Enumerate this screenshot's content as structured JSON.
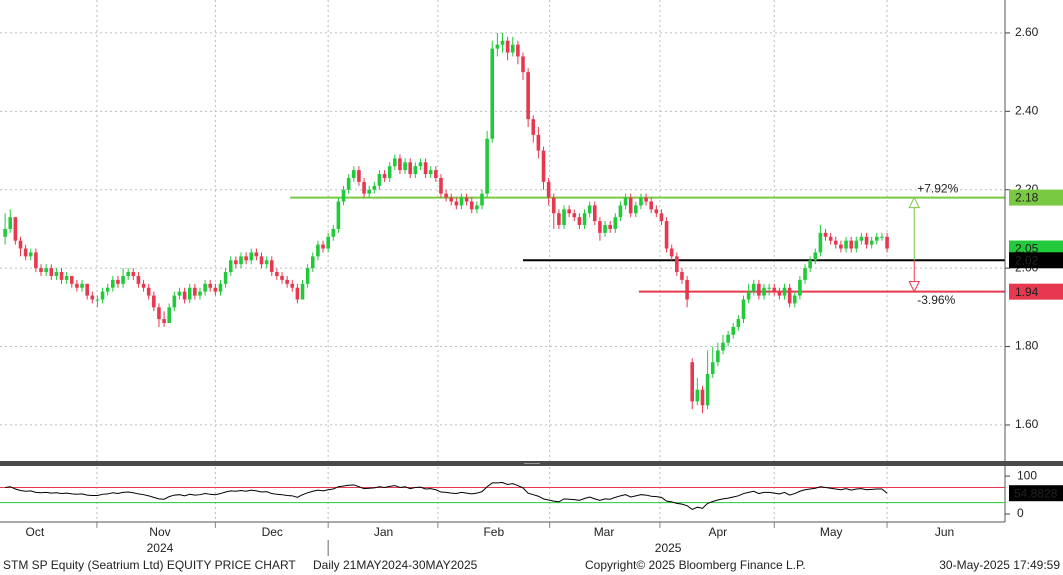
{
  "chart_data": {
    "type": "candlestick",
    "title": "STM SP Equity (Seatrium Ltd) EQUITY PRICE CHART",
    "subtitle": "Daily 21MAY2024-30MAY2025",
    "copyright": "Copyright© 2025 Bloomberg Finance L.P.",
    "timestamp": "30-May-2025 17:49:59",
    "up_color": "#22c93a",
    "down_color": "#e8384f",
    "grid": true,
    "xlim": [
      -1,
      195
    ],
    "xticks": [
      17.9,
      41,
      63,
      84.4,
      106.2,
      127.7,
      150,
      172
    ],
    "month_labels": [
      {
        "value": 5.8,
        "label": "Oct"
      },
      {
        "value": 30.2,
        "label": "Nov"
      },
      {
        "value": 52.1,
        "label": "Dec"
      },
      {
        "value": 73.8,
        "label": "Jan"
      },
      {
        "value": 95.3,
        "label": "Feb"
      },
      {
        "value": 116.8,
        "label": "Mar"
      },
      {
        "value": 139,
        "label": "Apr"
      },
      {
        "value": 161.1,
        "label": "May"
      },
      {
        "value": 183.2,
        "label": "Jun"
      }
    ],
    "year_labels": [
      {
        "value": 30.2,
        "label": "2024"
      },
      {
        "value": 129.3,
        "label": "2025"
      }
    ],
    "year_divider": 63,
    "ylim": [
      1.508,
      2.684
    ],
    "yticks": [
      {
        "value": 1.6,
        "label": "1.60"
      },
      {
        "value": 1.8,
        "label": "1.80"
      },
      {
        "value": 2.0,
        "label": "2.00"
      },
      {
        "value": 2.2,
        "label": "2.20"
      },
      {
        "value": 2.4,
        "label": "2.40"
      },
      {
        "value": 2.6,
        "label": "2.60"
      }
    ],
    "levels": [
      {
        "value": 2.18,
        "from": 55.6,
        "color": "#7ac943"
      },
      {
        "value": 2.02,
        "from": 101,
        "color": "#000000"
      },
      {
        "value": 1.94,
        "from": 123.6,
        "color": "#e8384f"
      }
    ],
    "annotations": [
      {
        "text": "+7.92%",
        "x": 177.3,
        "from": 2.02,
        "to": 2.18,
        "color": "#7ac943"
      },
      {
        "text": "-3.96%",
        "x": 177.3,
        "from": 2.02,
        "to": 1.94,
        "color": "#e8384f"
      }
    ],
    "candles": [
      [
        2.08,
        2.14,
        2.06,
        2.1
      ],
      [
        2.1,
        2.15,
        2.09,
        2.13
      ],
      [
        2.13,
        2.13,
        2.06,
        2.07
      ],
      [
        2.07,
        2.08,
        2.03,
        2.05
      ],
      [
        2.05,
        2.06,
        2.02,
        2.03
      ],
      [
        2.03,
        2.05,
        2.02,
        2.04
      ],
      [
        2.04,
        2.05,
        1.99,
        2.0
      ],
      [
        2.0,
        2.01,
        1.98,
        1.99
      ],
      [
        1.99,
        2.01,
        1.98,
        2.0
      ],
      [
        2.0,
        2.01,
        1.97,
        1.98
      ],
      [
        1.98,
        2.0,
        1.97,
        1.99
      ],
      [
        1.99,
        2.0,
        1.96,
        1.97
      ],
      [
        1.97,
        1.99,
        1.96,
        1.98
      ],
      [
        1.98,
        1.98,
        1.95,
        1.96
      ],
      [
        1.96,
        1.97,
        1.94,
        1.95
      ],
      [
        1.95,
        1.97,
        1.94,
        1.96
      ],
      [
        1.96,
        1.96,
        1.92,
        1.93
      ],
      [
        1.93,
        1.94,
        1.91,
        1.92
      ],
      [
        1.92,
        1.93,
        1.9,
        1.92
      ],
      [
        1.92,
        1.95,
        1.91,
        1.94
      ],
      [
        1.94,
        1.96,
        1.93,
        1.95
      ],
      [
        1.95,
        1.98,
        1.94,
        1.97
      ],
      [
        1.97,
        1.98,
        1.95,
        1.96
      ],
      [
        1.96,
        2.0,
        1.95,
        1.98
      ],
      [
        1.98,
        2.0,
        1.97,
        1.99
      ],
      [
        1.99,
        2.0,
        1.97,
        1.98
      ],
      [
        1.98,
        1.99,
        1.95,
        1.96
      ],
      [
        1.96,
        1.97,
        1.94,
        1.95
      ],
      [
        1.95,
        1.96,
        1.92,
        1.93
      ],
      [
        1.93,
        1.94,
        1.89,
        1.9
      ],
      [
        1.9,
        1.91,
        1.85,
        1.87
      ],
      [
        1.87,
        1.89,
        1.85,
        1.86
      ],
      [
        1.86,
        1.91,
        1.86,
        1.9
      ],
      [
        1.9,
        1.94,
        1.89,
        1.93
      ],
      [
        1.93,
        1.95,
        1.92,
        1.94
      ],
      [
        1.94,
        1.95,
        1.91,
        1.92
      ],
      [
        1.92,
        1.96,
        1.91,
        1.95
      ],
      [
        1.95,
        1.96,
        1.92,
        1.93
      ],
      [
        1.93,
        1.95,
        1.92,
        1.94
      ],
      [
        1.94,
        1.97,
        1.93,
        1.96
      ],
      [
        1.96,
        1.97,
        1.94,
        1.95
      ],
      [
        1.95,
        1.96,
        1.93,
        1.94
      ],
      [
        1.94,
        1.97,
        1.93,
        1.96
      ],
      [
        1.96,
        2.0,
        1.95,
        1.99
      ],
      [
        1.99,
        2.03,
        1.98,
        2.02
      ],
      [
        2.02,
        2.03,
        2.0,
        2.01
      ],
      [
        2.01,
        2.04,
        2.0,
        2.03
      ],
      [
        2.03,
        2.04,
        2.01,
        2.02
      ],
      [
        2.02,
        2.05,
        2.01,
        2.04
      ],
      [
        2.04,
        2.05,
        2.02,
        2.03
      ],
      [
        2.03,
        2.04,
        2.0,
        2.01
      ],
      [
        2.01,
        2.03,
        2.0,
        2.02
      ],
      [
        2.02,
        2.03,
        1.98,
        1.99
      ],
      [
        1.99,
        2.0,
        1.97,
        1.98
      ],
      [
        1.98,
        1.99,
        1.96,
        1.97
      ],
      [
        1.97,
        1.98,
        1.95,
        1.96
      ],
      [
        1.96,
        1.97,
        1.94,
        1.95
      ],
      [
        1.95,
        1.96,
        1.91,
        1.92
      ],
      [
        1.92,
        1.97,
        1.92,
        1.96
      ],
      [
        1.96,
        2.01,
        1.95,
        2.0
      ],
      [
        2.0,
        2.04,
        1.99,
        2.03
      ],
      [
        2.03,
        2.07,
        2.02,
        2.06
      ],
      [
        2.06,
        2.07,
        2.04,
        2.05
      ],
      [
        2.05,
        2.09,
        2.04,
        2.08
      ],
      [
        2.08,
        2.11,
        2.07,
        2.1
      ],
      [
        2.1,
        2.18,
        2.09,
        2.17
      ],
      [
        2.17,
        2.21,
        2.16,
        2.2
      ],
      [
        2.2,
        2.24,
        2.19,
        2.23
      ],
      [
        2.23,
        2.26,
        2.22,
        2.25
      ],
      [
        2.25,
        2.26,
        2.21,
        2.22
      ],
      [
        2.22,
        2.23,
        2.18,
        2.19
      ],
      [
        2.19,
        2.21,
        2.18,
        2.2
      ],
      [
        2.2,
        2.22,
        2.19,
        2.21
      ],
      [
        2.21,
        2.25,
        2.2,
        2.24
      ],
      [
        2.24,
        2.25,
        2.22,
        2.23
      ],
      [
        2.23,
        2.27,
        2.22,
        2.26
      ],
      [
        2.26,
        2.29,
        2.25,
        2.28
      ],
      [
        2.28,
        2.29,
        2.24,
        2.25
      ],
      [
        2.25,
        2.28,
        2.24,
        2.27
      ],
      [
        2.27,
        2.28,
        2.23,
        2.24
      ],
      [
        2.24,
        2.27,
        2.23,
        2.26
      ],
      [
        2.26,
        2.28,
        2.25,
        2.27
      ],
      [
        2.27,
        2.28,
        2.23,
        2.24
      ],
      [
        2.24,
        2.26,
        2.23,
        2.25
      ],
      [
        2.25,
        2.26,
        2.22,
        2.23
      ],
      [
        2.23,
        2.24,
        2.18,
        2.19
      ],
      [
        2.19,
        2.2,
        2.17,
        2.18
      ],
      [
        2.18,
        2.19,
        2.16,
        2.17
      ],
      [
        2.17,
        2.18,
        2.15,
        2.16
      ],
      [
        2.16,
        2.19,
        2.15,
        2.18
      ],
      [
        2.18,
        2.19,
        2.16,
        2.17
      ],
      [
        2.17,
        2.18,
        2.14,
        2.15
      ],
      [
        2.15,
        2.17,
        2.14,
        2.16
      ],
      [
        2.16,
        2.2,
        2.15,
        2.19
      ],
      [
        2.19,
        2.35,
        2.18,
        2.33
      ],
      [
        2.33,
        2.58,
        2.32,
        2.56
      ],
      [
        2.56,
        2.6,
        2.54,
        2.57
      ],
      [
        2.57,
        2.6,
        2.55,
        2.58
      ],
      [
        2.58,
        2.59,
        2.53,
        2.55
      ],
      [
        2.55,
        2.59,
        2.54,
        2.57
      ],
      [
        2.57,
        2.58,
        2.52,
        2.54
      ],
      [
        2.54,
        2.55,
        2.48,
        2.5
      ],
      [
        2.5,
        2.51,
        2.36,
        2.38
      ],
      [
        2.38,
        2.39,
        2.32,
        2.34
      ],
      [
        2.34,
        2.36,
        2.28,
        2.3
      ],
      [
        2.3,
        2.31,
        2.2,
        2.22
      ],
      [
        2.22,
        2.23,
        2.16,
        2.18
      ],
      [
        2.18,
        2.19,
        2.1,
        2.14
      ],
      [
        2.14,
        2.15,
        2.1,
        2.11
      ],
      [
        2.11,
        2.16,
        2.1,
        2.15
      ],
      [
        2.15,
        2.16,
        2.13,
        2.14
      ],
      [
        2.14,
        2.15,
        2.12,
        2.13
      ],
      [
        2.13,
        2.14,
        2.1,
        2.11
      ],
      [
        2.11,
        2.15,
        2.1,
        2.14
      ],
      [
        2.14,
        2.17,
        2.13,
        2.16
      ],
      [
        2.16,
        2.17,
        2.11,
        2.12
      ],
      [
        2.12,
        2.13,
        2.07,
        2.09
      ],
      [
        2.09,
        2.12,
        2.08,
        2.11
      ],
      [
        2.11,
        2.12,
        2.09,
        2.1
      ],
      [
        2.1,
        2.14,
        2.09,
        2.13
      ],
      [
        2.13,
        2.17,
        2.12,
        2.16
      ],
      [
        2.16,
        2.19,
        2.15,
        2.18
      ],
      [
        2.18,
        2.19,
        2.13,
        2.14
      ],
      [
        2.14,
        2.17,
        2.13,
        2.16
      ],
      [
        2.16,
        2.19,
        2.15,
        2.18
      ],
      [
        2.18,
        2.19,
        2.16,
        2.17
      ],
      [
        2.17,
        2.18,
        2.14,
        2.15
      ],
      [
        2.15,
        2.16,
        2.13,
        2.14
      ],
      [
        2.14,
        2.15,
        2.11,
        2.12
      ],
      [
        2.12,
        2.13,
        2.04,
        2.05
      ],
      [
        2.05,
        2.06,
        2.02,
        2.03
      ],
      [
        2.03,
        2.04,
        1.98,
        1.99
      ],
      [
        1.99,
        2.0,
        1.96,
        1.97
      ],
      [
        1.97,
        1.98,
        1.9,
        1.92
      ],
      [
        1.76,
        1.77,
        1.64,
        1.66
      ],
      [
        1.66,
        1.72,
        1.65,
        1.69
      ],
      [
        1.69,
        1.7,
        1.63,
        1.65
      ],
      [
        1.65,
        1.79,
        1.64,
        1.73
      ],
      [
        1.73,
        1.8,
        1.72,
        1.76
      ],
      [
        1.76,
        1.81,
        1.75,
        1.79
      ],
      [
        1.79,
        1.83,
        1.78,
        1.81
      ],
      [
        1.81,
        1.84,
        1.8,
        1.83
      ],
      [
        1.83,
        1.86,
        1.82,
        1.85
      ],
      [
        1.85,
        1.88,
        1.84,
        1.87
      ],
      [
        1.87,
        1.93,
        1.86,
        1.92
      ],
      [
        1.92,
        1.96,
        1.91,
        1.94
      ],
      [
        1.94,
        1.97,
        1.93,
        1.96
      ],
      [
        1.96,
        1.97,
        1.92,
        1.93
      ],
      [
        1.93,
        1.96,
        1.92,
        1.95
      ],
      [
        1.95,
        1.96,
        1.93,
        1.95
      ],
      [
        1.95,
        1.96,
        1.93,
        1.94
      ],
      [
        1.94,
        1.95,
        1.92,
        1.93
      ],
      [
        1.93,
        1.96,
        1.92,
        1.95
      ],
      [
        1.95,
        1.96,
        1.9,
        1.91
      ],
      [
        1.91,
        1.94,
        1.9,
        1.93
      ],
      [
        1.93,
        1.98,
        1.92,
        1.97
      ],
      [
        1.97,
        2.01,
        1.96,
        2.0
      ],
      [
        2.0,
        2.03,
        1.99,
        2.02
      ],
      [
        2.02,
        2.05,
        2.01,
        2.04
      ],
      [
        2.04,
        2.11,
        2.03,
        2.09
      ],
      [
        2.09,
        2.1,
        2.07,
        2.08
      ],
      [
        2.08,
        2.09,
        2.06,
        2.07
      ],
      [
        2.07,
        2.08,
        2.05,
        2.06
      ],
      [
        2.06,
        2.07,
        2.04,
        2.05
      ],
      [
        2.05,
        2.08,
        2.04,
        2.07
      ],
      [
        2.07,
        2.08,
        2.04,
        2.05
      ],
      [
        2.05,
        2.08,
        2.04,
        2.07
      ],
      [
        2.07,
        2.09,
        2.06,
        2.08
      ],
      [
        2.08,
        2.09,
        2.05,
        2.06
      ],
      [
        2.06,
        2.08,
        2.05,
        2.07
      ],
      [
        2.07,
        2.09,
        2.06,
        2.08
      ],
      [
        2.08,
        2.09,
        2.07,
        2.08
      ],
      [
        2.08,
        2.09,
        2.04,
        2.05
      ]
    ],
    "last_price_color": "#22c93a",
    "rsi": {
      "color": "#000000",
      "ylim": [
        -21,
        124
      ],
      "yticks": [
        0,
        100
      ],
      "levels": [
        {
          "value": 70,
          "color": "#e8384f"
        },
        {
          "value": 30,
          "color": "#22c93a"
        }
      ],
      "values": [
        70,
        72,
        66,
        62,
        60,
        61,
        57,
        56,
        57,
        55,
        56,
        54,
        55,
        53,
        52,
        53,
        50,
        49,
        49,
        52,
        53,
        56,
        54,
        57,
        58,
        56,
        53,
        51,
        48,
        44,
        40,
        39,
        46,
        50,
        51,
        48,
        52,
        50,
        51,
        54,
        52,
        51,
        54,
        58,
        61,
        60,
        62,
        60,
        63,
        61,
        58,
        59,
        54,
        52,
        51,
        49,
        48,
        44,
        51,
        56,
        60,
        63,
        61,
        64,
        66,
        72,
        74,
        76,
        77,
        72,
        67,
        68,
        69,
        72,
        70,
        73,
        75,
        70,
        72,
        67,
        70,
        71,
        66,
        67,
        64,
        58,
        57,
        55,
        54,
        57,
        55,
        53,
        55,
        59,
        72,
        82,
        82,
        83,
        78,
        80,
        75,
        69,
        55,
        51,
        47,
        40,
        37,
        34,
        32,
        40,
        39,
        38,
        36,
        41,
        45,
        40,
        36,
        40,
        39,
        44,
        48,
        51,
        45,
        48,
        51,
        50,
        47,
        46,
        44,
        34,
        32,
        28,
        26,
        22,
        12,
        18,
        15,
        28,
        33,
        37,
        40,
        42,
        45,
        48,
        54,
        57,
        60,
        54,
        57,
        57,
        55,
        53,
        57,
        50,
        54,
        60,
        64,
        66,
        68,
        72,
        70,
        68,
        66,
        64,
        67,
        63,
        66,
        67,
        64,
        65,
        66,
        66,
        54.8828
      ]
    }
  }
}
